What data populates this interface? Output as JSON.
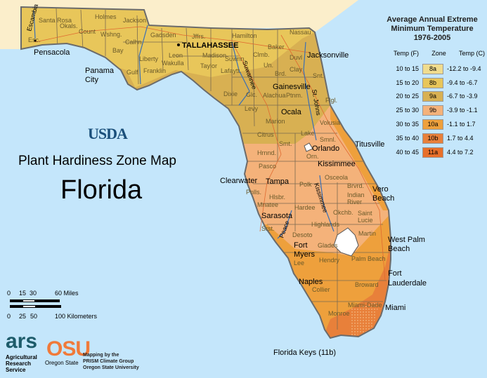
{
  "colors": {
    "water": "#c4e6fb",
    "neighbor_land": "#fbeecb",
    "zone_8a": "#f0dc8e",
    "zone_8b": "#e8c65a",
    "zone_9a": "#d8b052",
    "zone_9b": "#f4b27a",
    "zone_10a": "#eea03c",
    "zone_10b": "#e8803a",
    "zone_11a": "#e8702a",
    "county_line": "#7a6a50",
    "river": "#3a6fb5",
    "highway": "#e06a30"
  },
  "legend": {
    "title_lines": [
      "Average Annual Extreme",
      "Minimum Temperature",
      "1976-2005"
    ],
    "headers": {
      "f": "Temp (F)",
      "zone": "Zone",
      "c": "Temp (C)"
    },
    "rows": [
      {
        "f": "10 to 15",
        "zone": "8a",
        "c": "-12.2 to -9.4"
      },
      {
        "f": "15 to 20",
        "zone": "8b",
        "c": "-9.4 to -6.7"
      },
      {
        "f": "20 to 25",
        "zone": "9a",
        "c": "-6.7 to -3.9"
      },
      {
        "f": "25 to 30",
        "zone": "9b",
        "c": "-3.9 to -1.1"
      },
      {
        "f": "30 to 35",
        "zone": "10a",
        "c": "-1.1 to 1.7"
      },
      {
        "f": "35 to 40",
        "zone": "10b",
        "c": "1.7 to 4.4"
      },
      {
        "f": "40 to 45",
        "zone": "11a",
        "c": "4.4 to 7.2"
      }
    ]
  },
  "usda": "USDA",
  "map_title": "Plant Hardiness Zone Map",
  "state": "Florida",
  "scale": {
    "miles": [
      "0",
      "15",
      "30",
      "60 Miles"
    ],
    "km": [
      "0",
      "25",
      "50",
      "100 Kilometers"
    ]
  },
  "credits": {
    "ars_logo": "ars",
    "ars_text": [
      "Agricultural",
      "Research",
      "Service"
    ],
    "osu_logo": "OSU",
    "osu_text": "Oregon State",
    "prism": [
      "Mapping by the",
      "PRISM Climate Group",
      "Oregon State University"
    ]
  },
  "cities": {
    "tallahassee": "TALLAHASSEE",
    "pensacola": "Pensacola",
    "panama": [
      "Panama",
      "City"
    ],
    "jacksonville": "Jacksonville",
    "gainesville": "Gainesville",
    "ocala": "Ocala",
    "orlando": "Orlando",
    "titusville": "Titusville",
    "kissimmee": "Kissimmee",
    "clearwater": "Clearwater",
    "tampa": "Tampa",
    "vero": [
      "Vero",
      "Beach"
    ],
    "sarasota": "Sarasota",
    "westpalm": [
      "West Palm",
      "Beach"
    ],
    "fortmyers": [
      "Fort",
      "Myers"
    ],
    "fortlaud": [
      "Fort",
      "Lauderdale"
    ],
    "naples": "Naples",
    "miami": "Miami",
    "keys": "Florida Keys (11b)"
  },
  "rivers": {
    "escambia": "Escambia",
    "suwannee": "Suwannee",
    "stjohns": "St. Johns",
    "kissimmee": "Kissimmee",
    "peace": "Peace"
  },
  "counties": [
    "Santa Rosa",
    "Okals.",
    "Holmes",
    "Jackson",
    "Esc.",
    "Count",
    "Wshng.",
    "Calhn.",
    "Gadsden",
    "Jffrs.",
    "Hamilton",
    "Nassau",
    "Bay",
    "Liberty",
    "Wakulla",
    "Leon",
    "Madison",
    "Taylor",
    "Gulf",
    "Franklin",
    "Suwnn.",
    "Clmb.",
    "Baker",
    "Duvl",
    "Lafaytt.",
    "Un.",
    "Brd.",
    "Clay",
    "Snt.",
    "Dixie",
    "Glc.",
    "Alachua",
    "Ptnm.",
    "Flgl.",
    "Levy",
    "Marion",
    "Volusia",
    "Lake",
    "Citrus",
    "Smt.",
    "Hrnnd.",
    "Smnl.",
    "Orn.",
    "Pasco",
    "Osceola",
    "Polk",
    "Brvrd.",
    "Indian River",
    "Hlsbr.",
    "Mnatee",
    "Hardee",
    "Okchb.",
    "Saint Lucie",
    "Srst.",
    "Desoto",
    "Highlands",
    "Martin",
    "Glades",
    "Lee",
    "Hendry",
    "Palm Beach",
    "Collier",
    "Broward",
    "Miami-Dade",
    "Monroe",
    "Pnlls."
  ]
}
